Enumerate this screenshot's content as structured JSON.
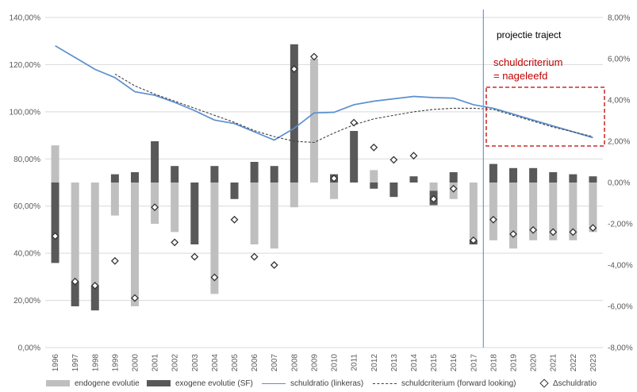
{
  "chart_data": {
    "type": "bar",
    "categories": [
      "1996",
      "1997",
      "1998",
      "1999",
      "2000",
      "2001",
      "2002",
      "2003",
      "2004",
      "2005",
      "2006",
      "2007",
      "2008",
      "2009",
      "2010",
      "2011",
      "2012",
      "2013",
      "2014",
      "2015",
      "2016",
      "2017",
      "2018",
      "2019",
      "2020",
      "2021",
      "2022",
      "2023"
    ],
    "left_axis": {
      "ylim": [
        0,
        140
      ],
      "ticks": [
        "0,00%",
        "20,00%",
        "40,00%",
        "60,00%",
        "80,00%",
        "100,00%",
        "120,00%",
        "140,00%"
      ]
    },
    "right_axis": {
      "ylim": [
        -8,
        8
      ],
      "ticks": [
        "-8,00%",
        "-6,00%",
        "-4,00%",
        "-2,00%",
        "0,00%",
        "2,00%",
        "4,00%",
        "6,00%",
        "8,00%"
      ]
    },
    "series": [
      {
        "name": "endogene evolutie",
        "axis": "right",
        "color": "#bfbfbf",
        "values": [
          1.8,
          -4.8,
          -5.0,
          -1.6,
          -6.0,
          -2.0,
          -2.4,
          0.0,
          -5.4,
          0.0,
          -3.0,
          -3.2,
          -1.2,
          6.0,
          -0.8,
          0.0,
          0.6,
          0.0,
          0.0,
          -0.4,
          -0.8,
          -2.8,
          -2.8,
          -3.2,
          -2.8,
          -2.8,
          -2.8,
          -2.4
        ]
      },
      {
        "name": "exogene evolutie (SF)",
        "axis": "right",
        "color": "#595959",
        "values": [
          -3.9,
          -1.2,
          -1.2,
          0.4,
          0.5,
          2.0,
          0.8,
          -3.0,
          0.8,
          -0.8,
          1.0,
          0.8,
          6.7,
          0.0,
          0.4,
          2.5,
          -0.3,
          -0.7,
          0.3,
          -0.7,
          0.5,
          -0.2,
          0.9,
          0.7,
          0.7,
          0.5,
          0.4,
          0.3
        ]
      },
      {
        "name": "schuldratio (linkeras)",
        "axis": "left",
        "color": "#5b8fcf",
        "values": [
          128.0,
          123.0,
          118.0,
          114.5,
          108.5,
          107.0,
          104.0,
          100.5,
          96.5,
          95.0,
          91.5,
          88.0,
          93.0,
          99.5,
          99.8,
          103.0,
          104.5,
          105.5,
          106.5,
          106.0,
          105.8,
          103.0,
          101.5,
          99.0,
          96.5,
          94.0,
          91.5,
          89.0
        ]
      },
      {
        "name": "schuldcriterium (forward looking)",
        "axis": "left",
        "color": "#404040",
        "values": [
          null,
          null,
          null,
          116.0,
          111.0,
          107.5,
          104.5,
          101.5,
          98.5,
          95.5,
          92.0,
          89.5,
          87.5,
          87.0,
          91.0,
          94.5,
          97.0,
          98.5,
          100.0,
          101.0,
          101.5,
          101.5,
          101.0,
          98.5,
          96.0,
          93.5,
          91.5,
          89.5
        ]
      },
      {
        "name": "Δschuldratio",
        "axis": "right",
        "color": "#333333",
        "values": [
          -2.6,
          -4.8,
          -5.0,
          -3.8,
          -5.6,
          -1.2,
          -2.9,
          -3.6,
          -4.6,
          -1.8,
          -3.6,
          -4.0,
          5.5,
          6.1,
          0.2,
          2.9,
          1.7,
          1.1,
          1.3,
          -0.8,
          -0.3,
          -2.8,
          -1.8,
          -2.5,
          -2.3,
          -2.4,
          -2.4,
          -2.2
        ]
      }
    ],
    "annotations": {
      "projection": "projectie traject",
      "criterion_line1": "schuldcriterium",
      "criterion_line2": "= nageleefd"
    },
    "legend_position": "bottom",
    "grid": true
  }
}
